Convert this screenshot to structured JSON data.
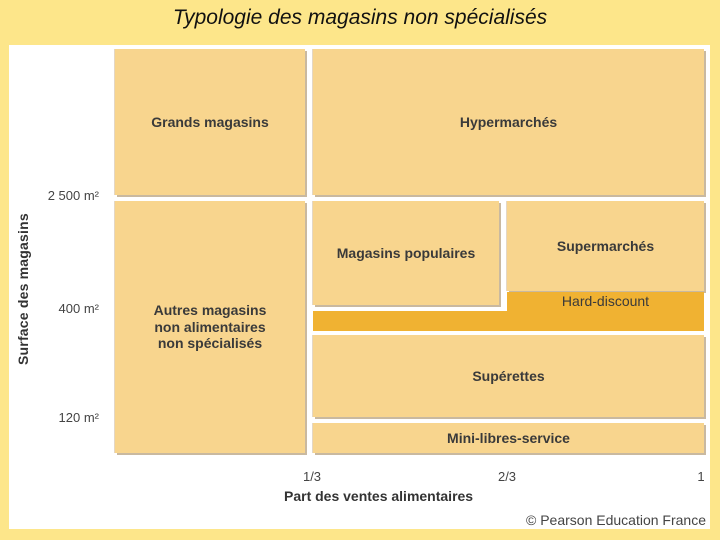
{
  "slide": {
    "title": "Typologie des magasins non spécialisés"
  },
  "axes": {
    "ylabel": "Surface des magasins",
    "yticks": [
      "2 500 m²",
      "400 m²",
      "120 m²"
    ],
    "xlabel": "Part des ventes alimentaires",
    "xticks": [
      "1/3",
      "2/3",
      "1"
    ]
  },
  "cells": {
    "grands_magasins": "Grands magasins",
    "hypermarches": "Hypermarchés",
    "magasins_populaires": "Magasins populaires",
    "supermarches": "Supermarchés",
    "hard_discount": "Hard-discount",
    "autres_magasins": "Autres magasins\nnon alimentaires\nnon spécialisés",
    "superettes": "Supérettes",
    "mini_libres_service": "Mini-libres-service"
  },
  "colors": {
    "cell_fill": "#F8D58E",
    "accent_fill": "#F0B232",
    "slide_bg": "#FDE68A"
  },
  "copyright": "© Pearson Education France"
}
